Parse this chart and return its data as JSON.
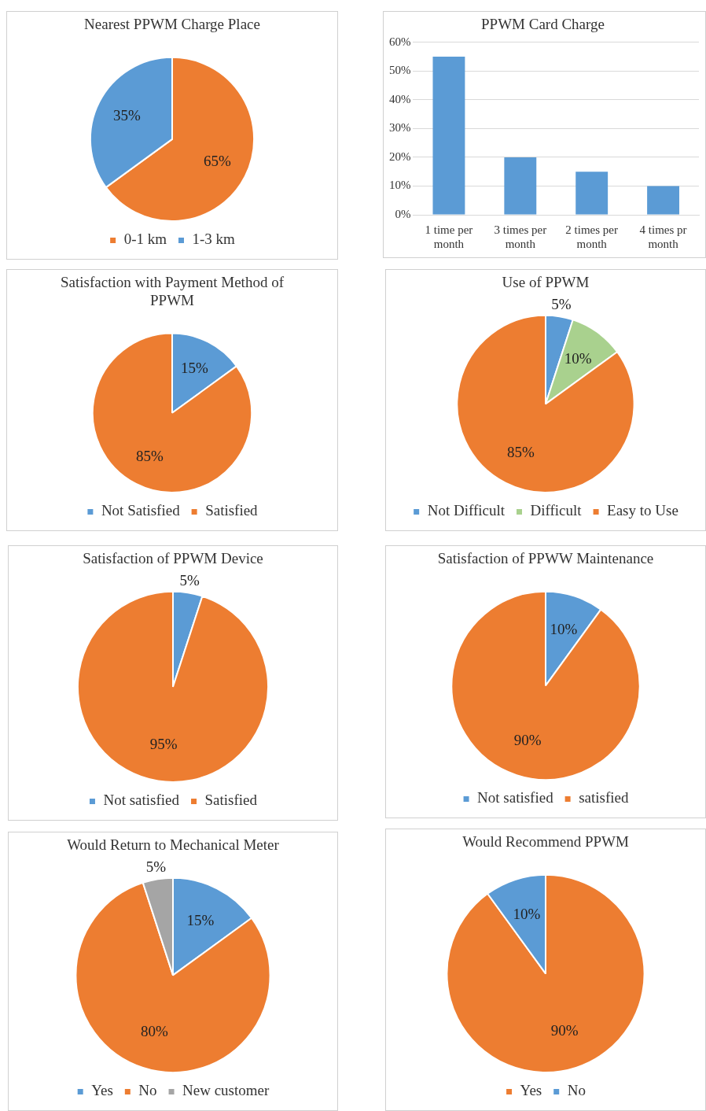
{
  "chart_data": [
    {
      "type": "pie",
      "title": "Nearest PPWM Charge Place",
      "categories": [
        "0-1 km",
        "1-3 km"
      ],
      "values": [
        65,
        35
      ],
      "colors": [
        "#ed7d31",
        "#5b9bd5"
      ],
      "value_labels": [
        "65%",
        "35%"
      ],
      "legend": "bottom"
    },
    {
      "type": "bar",
      "title": "PPWM Card Charge",
      "categories": [
        "1 time per month",
        "3 times per month",
        "2 times per month",
        "4 times pr month"
      ],
      "values": [
        55,
        20,
        15,
        10
      ],
      "color": "#5b9bd5",
      "ylim": [
        0,
        60
      ],
      "yticks": [
        {
          "value": 0,
          "label": "0%"
        },
        {
          "value": 10,
          "label": "10%"
        },
        {
          "value": 20,
          "label": "20%"
        },
        {
          "value": 30,
          "label": "30%"
        },
        {
          "value": 40,
          "label": "40%"
        },
        {
          "value": 50,
          "label": "50%"
        },
        {
          "value": 60,
          "label": "60%"
        }
      ],
      "grid": "y"
    },
    {
      "type": "pie",
      "title": "Satisfaction with Payment Method of PPWM",
      "categories": [
        "Not Satisfied",
        "Satisfied"
      ],
      "values": [
        15,
        85
      ],
      "colors": [
        "#5b9bd5",
        "#ed7d31"
      ],
      "value_labels": [
        "15%",
        "85%"
      ],
      "legend": "bottom"
    },
    {
      "type": "pie",
      "title": "Use of PPWM",
      "categories": [
        "Not Difficult",
        "Difficult",
        "Easy to Use"
      ],
      "values": [
        5,
        10,
        85
      ],
      "colors": [
        "#5b9bd5",
        "#a9d18e",
        "#ed7d31"
      ],
      "value_labels": [
        "5%",
        "10%",
        "85%"
      ],
      "legend": "bottom"
    },
    {
      "type": "pie",
      "title": "Satisfaction of PPWM Device",
      "categories": [
        "Not satisfied",
        "Satisfied"
      ],
      "values": [
        5,
        95
      ],
      "colors": [
        "#5b9bd5",
        "#ed7d31"
      ],
      "value_labels": [
        "5%",
        "95%"
      ],
      "legend": "bottom"
    },
    {
      "type": "pie",
      "title": "Satisfaction of PPWW Maintenance",
      "categories": [
        "Not satisfied",
        "satisfied"
      ],
      "values": [
        10,
        90
      ],
      "colors": [
        "#5b9bd5",
        "#ed7d31"
      ],
      "value_labels": [
        "10%",
        "90%"
      ],
      "legend": "bottom"
    },
    {
      "type": "pie",
      "title": "Would Return to Mechanical Meter",
      "categories": [
        "Yes",
        "No",
        "New customer"
      ],
      "values": [
        15,
        80,
        5
      ],
      "colors": [
        "#5b9bd5",
        "#ed7d31",
        "#a5a5a5"
      ],
      "value_labels": [
        "15%",
        "80%",
        "5%"
      ],
      "legend": "bottom"
    },
    {
      "type": "pie",
      "title": "Would Recommend PPWM",
      "categories": [
        "Yes",
        "No"
      ],
      "values": [
        90,
        10
      ],
      "colors": [
        "#ed7d31",
        "#5b9bd5"
      ],
      "value_labels": [
        "90%",
        "10%"
      ],
      "legend": "bottom"
    }
  ]
}
